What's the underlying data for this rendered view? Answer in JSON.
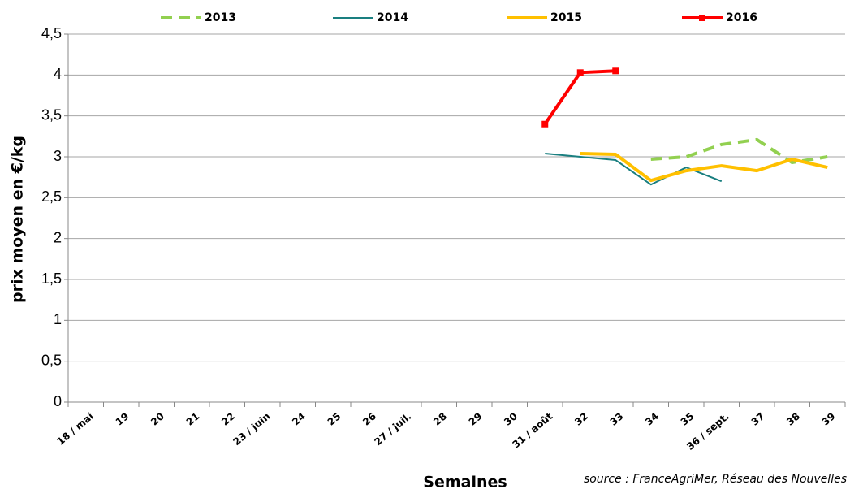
{
  "chart_data": {
    "type": "line",
    "ylabel": "prix moyen en €/kg",
    "xlabel": "Semaines",
    "source": "source : FranceAgriMer, Réseau des Nouvelles",
    "categories": [
      "18 / mai",
      "19",
      "20",
      "21",
      "22",
      "23 / juin",
      "24",
      "25",
      "26",
      "27 / juil.",
      "28",
      "29",
      "30",
      "31 / août",
      "32",
      "33",
      "34",
      "35",
      "36 / sept.",
      "37",
      "38",
      "39"
    ],
    "series": [
      {
        "name": "2013",
        "color": "#92d050",
        "dashed": true,
        "values": [
          null,
          null,
          null,
          null,
          null,
          null,
          null,
          null,
          null,
          null,
          null,
          null,
          null,
          null,
          null,
          null,
          2.97,
          3.0,
          3.15,
          3.21,
          2.93,
          3.0
        ]
      },
      {
        "name": "2014",
        "color": "#1a7f80",
        "values": [
          null,
          null,
          null,
          null,
          null,
          null,
          null,
          null,
          null,
          null,
          null,
          null,
          null,
          3.04,
          3.0,
          2.96,
          2.66,
          2.87,
          2.7,
          null,
          null,
          null
        ]
      },
      {
        "name": "2015",
        "color": "#ffc000",
        "values": [
          null,
          null,
          null,
          null,
          null,
          null,
          null,
          null,
          null,
          null,
          null,
          null,
          null,
          null,
          3.04,
          3.03,
          2.71,
          2.83,
          2.89,
          2.83,
          2.97,
          2.87
        ]
      },
      {
        "name": "2016",
        "color": "#ff0000",
        "marker": "square",
        "values": [
          null,
          null,
          null,
          null,
          null,
          null,
          null,
          null,
          null,
          null,
          null,
          null,
          null,
          3.4,
          4.03,
          4.05,
          null,
          null,
          null,
          null,
          null,
          null
        ]
      }
    ],
    "ylim": [
      0,
      4.5
    ],
    "yticks": [
      0,
      {
        "value": 0.5,
        "label": "0,5"
      },
      1,
      {
        "value": 1.5,
        "label": "1,5"
      },
      2,
      {
        "value": 2.5,
        "label": "2,5"
      },
      3,
      {
        "value": 3.5,
        "label": "3,5"
      },
      4,
      {
        "value": 4.5,
        "label": "4,5"
      }
    ],
    "grid": true,
    "legend": "top"
  }
}
